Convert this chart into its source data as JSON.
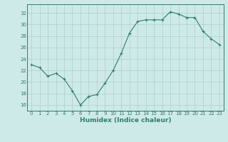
{
  "x": [
    0,
    1,
    2,
    3,
    4,
    5,
    6,
    7,
    8,
    9,
    10,
    11,
    12,
    13,
    14,
    15,
    16,
    17,
    18,
    19,
    20,
    21,
    22,
    23
  ],
  "y": [
    23.0,
    22.5,
    21.0,
    21.5,
    20.5,
    18.5,
    16.0,
    17.5,
    17.8,
    19.8,
    22.0,
    25.0,
    28.5,
    30.5,
    30.8,
    30.8,
    30.8,
    32.2,
    31.8,
    31.2,
    31.2,
    28.8,
    27.5,
    26.5
  ],
  "line_color": "#2e7d6e",
  "marker": "+",
  "marker_size": 3,
  "marker_lw": 0.8,
  "line_width": 0.8,
  "bg_color": "#ceeae8",
  "grid_color": "#aacfcc",
  "axis_color": "#2e7d6e",
  "tick_color": "#2e7d6e",
  "xlabel": "Humidex (Indice chaleur)",
  "xlabel_fontsize": 6.5,
  "xlabel_color": "#2e7d6e",
  "tick_fontsize": 5.0,
  "ylabel_ticks": [
    16,
    18,
    20,
    22,
    24,
    26,
    28,
    30,
    32
  ],
  "xlim": [
    -0.5,
    23.5
  ],
  "ylim": [
    15.0,
    33.5
  ],
  "xtick_labels": [
    "0",
    "1",
    "2",
    "3",
    "4",
    "5",
    "6",
    "7",
    "8",
    "9",
    "10",
    "11",
    "12",
    "13",
    "14",
    "15",
    "16",
    "17",
    "18",
    "19",
    "20",
    "21",
    "22",
    "23"
  ]
}
